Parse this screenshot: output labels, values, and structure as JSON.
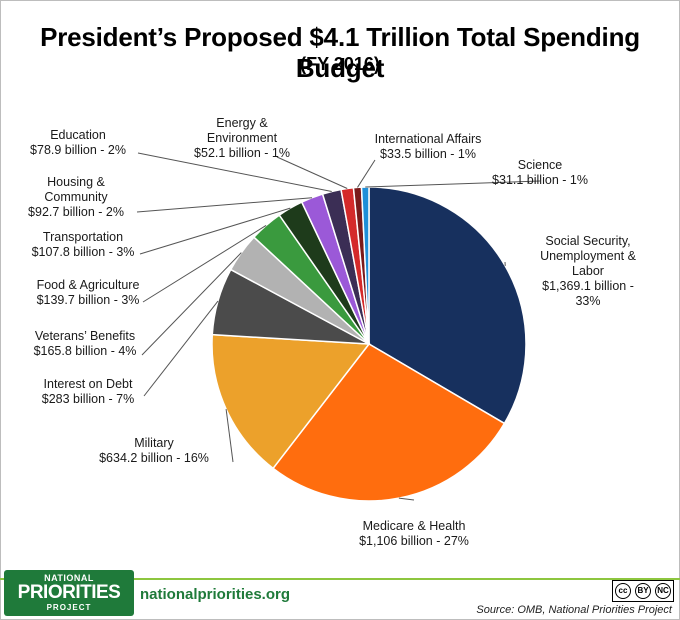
{
  "chart_data": {
    "type": "pie",
    "title": "President’s Proposed $4.1 Trillion Total Spending Budget",
    "subtitle": "(FY 2016)",
    "slices": [
      {
        "label_lines": [
          "Social Security,",
          "Unemployment &",
          "Labor",
          "$1,369.1 billion -",
          "33%"
        ],
        "value": 1369.1,
        "percent": 33,
        "color": "#17305e"
      },
      {
        "label_lines": [
          "Medicare & Health",
          "$1,106 billion - 27%"
        ],
        "value": 1106,
        "percent": 27,
        "color": "#ff6d0e"
      },
      {
        "label_lines": [
          "Military",
          "$634.2 billion - 16%"
        ],
        "value": 634.2,
        "percent": 16,
        "color": "#eca12b"
      },
      {
        "label_lines": [
          "Interest on Debt",
          "$283 billion - 7%"
        ],
        "value": 283,
        "percent": 7,
        "color": "#4b4b4b"
      },
      {
        "label_lines": [
          "Veterans’ Benefits",
          "$165.8 billion - 4%"
        ],
        "value": 165.8,
        "percent": 4,
        "color": "#b2b2b2"
      },
      {
        "label_lines": [
          "Food & Agriculture",
          "$139.7 billion - 3%"
        ],
        "value": 139.7,
        "percent": 3,
        "color": "#3a9a3e"
      },
      {
        "label_lines": [
          "Transportation",
          "$107.8 billion - 3%"
        ],
        "value": 107.8,
        "percent": 3,
        "color": "#1e3b1b"
      },
      {
        "label_lines": [
          "Housing &",
          "Community",
          "$92.7 billion - 2%"
        ],
        "value": 92.7,
        "percent": 2,
        "color": "#9b59d8"
      },
      {
        "label_lines": [
          "Education",
          "$78.9 billion - 2%"
        ],
        "value": 78.9,
        "percent": 2,
        "color": "#3b2e55"
      },
      {
        "label_lines": [
          "Energy &",
          "Environment",
          "$52.1 billion - 1%"
        ],
        "value": 52.1,
        "percent": 1,
        "color": "#d42a2a"
      },
      {
        "label_lines": [
          "International Affairs",
          "$33.5 billion - 1%"
        ],
        "value": 33.5,
        "percent": 1,
        "color": "#7a1a1a"
      },
      {
        "label_lines": [
          "Science",
          "$31.1 billion - 1%"
        ],
        "value": 31.1,
        "percent": 1,
        "color": "#1f8fd8"
      }
    ]
  },
  "footer": {
    "logo_line1": "NATIONAL",
    "logo_line2": "PRIORITIES",
    "logo_line3": "PROJECT",
    "website": "nationalpriorities.org",
    "cc_badges": [
      "cc",
      "BY",
      "NC"
    ],
    "source": "Source: OMB, National Priorities Project"
  }
}
